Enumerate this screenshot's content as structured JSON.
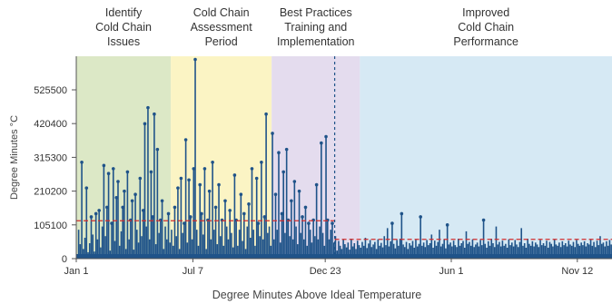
{
  "chart_data": {
    "type": "bar",
    "title": "",
    "xlabel": "Degree Minutes Above Ideal Temperature",
    "ylabel": "Degree Minutes °C",
    "x_range": [
      0,
      340
    ],
    "ylim": [
      0,
      630000
    ],
    "y_ticks": [
      0,
      105100,
      210200,
      315300,
      420400,
      525500
    ],
    "x_ticks": [
      {
        "label": "Jan 1",
        "x": 0
      },
      {
        "label": "Jul 7",
        "x": 74
      },
      {
        "label": "Dec 23",
        "x": 158
      },
      {
        "label": "Jun 1",
        "x": 238
      },
      {
        "label": "Nov 12",
        "x": 318
      }
    ],
    "phases": [
      {
        "lines": [
          "Identify",
          "Cold Chain",
          "Issues"
        ],
        "x_start": 0,
        "x_end": 60,
        "color": "#dce8c6"
      },
      {
        "lines": [
          "Cold Chain",
          "Assessment",
          "Period"
        ],
        "x_start": 60,
        "x_end": 124,
        "color": "#fbf4c4"
      },
      {
        "lines": [
          "Best Practices",
          "Training and",
          "Implementation"
        ],
        "x_start": 124,
        "x_end": 180,
        "color": "#e4dcee"
      },
      {
        "lines": [
          "Improved",
          "Cold Chain",
          "Performance"
        ],
        "x_start": 180,
        "x_end": 340,
        "color": "#d6e9f4"
      }
    ],
    "intervention_x": 164,
    "averages": [
      {
        "x_start": 0,
        "x_end": 164,
        "value": 118000
      },
      {
        "x_start": 164,
        "x_end": 340,
        "value": 60000
      }
    ],
    "series": [
      {
        "values": [
          12000,
          90000,
          45000,
          300000,
          30000,
          65000,
          220000,
          20000,
          48000,
          130000,
          75000,
          22000,
          140000,
          60000,
          150000,
          35000,
          100000,
          290000,
          70000,
          160000,
          265000,
          25000,
          110000,
          280000,
          55000,
          190000,
          240000,
          40000,
          85000,
          160000,
          210000,
          30000,
          270000,
          60000,
          120000,
          180000,
          28000,
          200000,
          90000,
          50000,
          250000,
          70000,
          150000,
          420000,
          100000,
          470000,
          60000,
          270000,
          130000,
          450000,
          45000,
          340000,
          80000,
          120000,
          180000,
          30000,
          100000,
          60000,
          140000,
          50000,
          90000,
          40000,
          160000,
          70000,
          220000,
          30000,
          250000,
          80000,
          110000,
          370000,
          50000,
          245000,
          130000,
          60000,
          280000,
          620000,
          90000,
          40000,
          230000,
          140000,
          75000,
          280000,
          30000,
          120000,
          210000,
          60000,
          300000,
          90000,
          160000,
          45000,
          230000,
          70000,
          120000,
          40000,
          180000,
          100000,
          60000,
          150000,
          80000,
          35000,
          260000,
          120000,
          40000,
          90000,
          200000,
          55000,
          140000,
          30000,
          100000,
          170000,
          65000,
          280000,
          90000,
          40000,
          250000,
          110000,
          70000,
          300000,
          60000,
          130000,
          450000,
          80000,
          100000,
          40000,
          390000,
          60000,
          200000,
          90000,
          330000,
          50000,
          140000,
          270000,
          80000,
          340000,
          120000,
          70000,
          180000,
          60000,
          240000,
          100000,
          45000,
          210000,
          80000,
          130000,
          60000,
          160000,
          40000,
          110000,
          90000,
          50000,
          120000,
          70000,
          230000,
          60000,
          100000,
          360000,
          80000,
          40000,
          380000,
          120000,
          60000,
          90000,
          110000,
          50000,
          70000,
          25000,
          55000,
          40000,
          30000,
          60000,
          45000,
          35000,
          50000,
          28000,
          62000,
          38000,
          48000,
          30000,
          56000,
          42000,
          34000,
          52000,
          40000,
          65000,
          33000,
          47000,
          58000,
          36000,
          44000,
          52000,
          30000,
          60000,
          40000,
          49000,
          35000,
          70000,
          42000,
          95000,
          38000,
          54000,
          110000,
          46000,
          32000,
          58000,
          40000,
          62000,
          140000,
          44000,
          36000,
          52000,
          30000,
          48000,
          41000,
          55000,
          34000,
          60000,
          38000,
          46000,
          130000,
          40000,
          50000,
          36000,
          58000,
          42000,
          48000,
          75000,
          34000,
          56000,
          40000,
          52000,
          90000,
          38000,
          46000,
          60000,
          32000,
          105000,
          44000,
          50000,
          38000,
          56000,
          42000,
          36000,
          62000,
          40000,
          48000,
          55000,
          34000,
          85000,
          46000,
          52000,
          40000,
          60000,
          36000,
          44000,
          50000,
          38000,
          58000,
          42000,
          120000,
          46000,
          34000,
          54000,
          40000,
          62000,
          48000,
          36000,
          100000,
          44000,
          52000,
          38000,
          56000,
          40000,
          46000,
          34000,
          60000,
          42000,
          50000,
          38000,
          58000,
          44000,
          36000,
          52000,
          95000,
          40000,
          48000,
          34000,
          62000,
          46000,
          40000,
          54000,
          38000,
          50000,
          44000,
          36000,
          58000,
          42000,
          48000,
          40000,
          56000,
          34000,
          52000,
          46000,
          38000,
          60000,
          44000,
          40000,
          50000,
          36000,
          54000,
          42000,
          48000,
          38000,
          56000,
          44000,
          40000,
          52000,
          36000,
          58000,
          46000,
          40000,
          50000,
          42000,
          54000,
          38000,
          48000,
          44000,
          60000,
          40000,
          52000,
          36000,
          56000,
          42000,
          70000,
          46000,
          50000,
          38000,
          54000,
          40000,
          58000,
          44000
        ]
      }
    ],
    "colors": {
      "bar": "#1f5389",
      "average_line": "#d12d2d",
      "intervention_line": "#1f5389",
      "axis": "#555555",
      "text": "#333333"
    }
  }
}
